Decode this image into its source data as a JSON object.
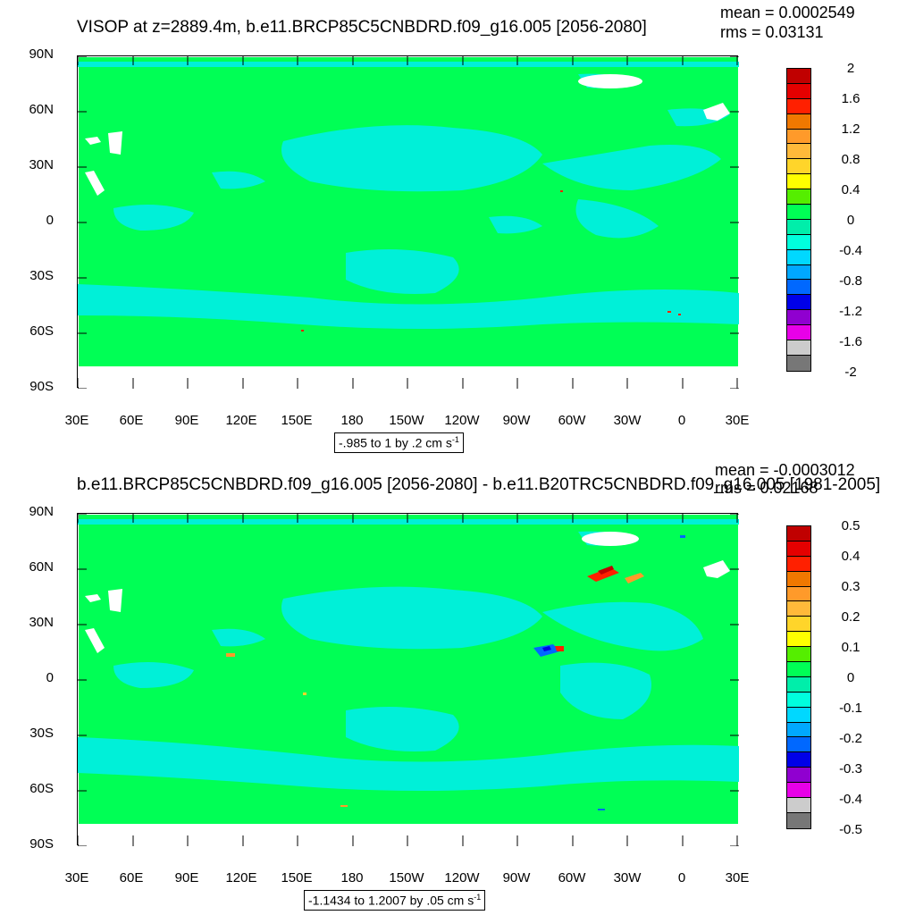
{
  "panels": [
    {
      "title": "VISOP at z=2889.4m, b.e11.BRCP85C5CNBDRD.f09_g16.005 [2056-2080]",
      "mean_label": "mean = 0.0002549",
      "rms_label": "rms = 0.03131",
      "range_text": "-.985 to 1 by .2 cm s",
      "range_sup": "-1",
      "colorbar_labels": [
        "2",
        "1.6",
        "1.2",
        "0.8",
        "0.4",
        "0",
        "-0.4",
        "-0.8",
        "-1.2",
        "-1.6",
        "-2"
      ]
    },
    {
      "title": "b.e11.BRCP85C5CNBDRD.f09_g16.005 [2056-2080] - b.e11.B20TRC5CNBDRD.f09_g16.005 [1981-2005]",
      "mean_label": "mean = -0.0003012",
      "rms_label": "rms = 0.02168",
      "range_text": "-1.1434 to 1.2007 by .05 cm s",
      "range_sup": "-1",
      "colorbar_labels": [
        "0.5",
        "0.4",
        "0.3",
        "0.2",
        "0.1",
        "0",
        "-0.1",
        "-0.2",
        "-0.3",
        "-0.4",
        "-0.5"
      ]
    }
  ],
  "axes": {
    "y_ticks": [
      "90N",
      "60N",
      "30N",
      "0",
      "30S",
      "60S",
      "90S"
    ],
    "x_ticks": [
      "30E",
      "60E",
      "90E",
      "120E",
      "150E",
      "180",
      "150W",
      "120W",
      "90W",
      "60W",
      "30W",
      "0",
      "30E"
    ]
  },
  "colors": {
    "colorbar": [
      "#c00000",
      "#e50000",
      "#ff2000",
      "#f07800",
      "#ff9a2a",
      "#ffb93a",
      "#ffd52a",
      "#ffff00",
      "#55ee00",
      "#00ff55",
      "#00eeaa",
      "#00ffdd",
      "#00d8ff",
      "#00a8ff",
      "#0068ff",
      "#0000e8",
      "#9000d0",
      "#e800e8",
      "#cccccc",
      "#777777"
    ],
    "ocean_base": "#00ff55",
    "ocean_anomaly": "#00f0d8",
    "land_or_missing": "#ffffff"
  },
  "chart_data": [
    {
      "type": "heatmap",
      "title": "VISOP at z=2889.4m, b.e11.BRCP85C5CNBDRD.f09_g16.005 [2056-2080]",
      "x_ticks": [
        "30E",
        "60E",
        "90E",
        "120E",
        "150E",
        "180",
        "150W",
        "120W",
        "90W",
        "60W",
        "30W",
        "0",
        "30E"
      ],
      "y_ticks": [
        "90N",
        "60N",
        "30N",
        "0",
        "30S",
        "60S",
        "90S"
      ],
      "mean": 0.0002549,
      "rms": 0.03131,
      "contour_range": {
        "min": -0.985,
        "max": 1,
        "interval": 0.2,
        "units": "cm s-1"
      },
      "colorbar_levels": [
        2,
        1.6,
        1.2,
        0.8,
        0.4,
        0,
        -0.4,
        -0.8,
        -1.2,
        -1.6,
        -2
      ]
    },
    {
      "type": "heatmap",
      "title": "b.e11.BRCP85C5CNBDRD.f09_g16.005 [2056-2080] - b.e11.B20TRC5CNBDRD.f09_g16.005 [1981-2005]",
      "x_ticks": [
        "30E",
        "60E",
        "90E",
        "120E",
        "150E",
        "180",
        "150W",
        "120W",
        "90W",
        "60W",
        "30W",
        "0",
        "30E"
      ],
      "y_ticks": [
        "90N",
        "60N",
        "30N",
        "0",
        "30S",
        "60S",
        "90S"
      ],
      "mean": -0.0003012,
      "rms": 0.02168,
      "contour_range": {
        "min": -1.1434,
        "max": 1.2007,
        "interval": 0.05,
        "units": "cm s-1"
      },
      "colorbar_levels": [
        0.5,
        0.4,
        0.3,
        0.2,
        0.1,
        0,
        -0.1,
        -0.2,
        -0.3,
        -0.4,
        -0.5
      ]
    }
  ]
}
